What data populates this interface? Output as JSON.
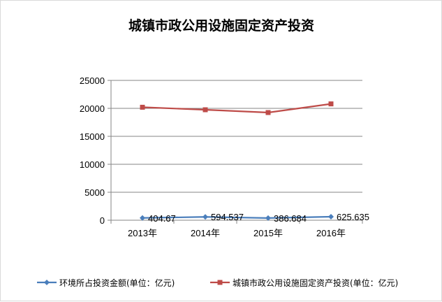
{
  "chart_data": {
    "type": "line",
    "title": "城镇市政公用设施固定资产投资",
    "categories": [
      "2013年",
      "2014年",
      "2015年",
      "2016年"
    ],
    "ylim": [
      0,
      25000
    ],
    "yticks": [
      "0",
      "5000",
      "10000",
      "15000",
      "20000",
      "25000"
    ],
    "grid": true,
    "legend_position": "bottom",
    "series": [
      {
        "name": "环境所占投资金额(单位：亿元)",
        "values": [
          404.67,
          594.537,
          386.684,
          625.635
        ],
        "data_labels": [
          "404.67",
          "594.537",
          "386.684",
          "625.635"
        ],
        "color": "#4a7ebb",
        "marker": "diamond"
      },
      {
        "name": "城镇市政公用设施固定资产投资(单位：亿元)",
        "values": [
          20200,
          19750,
          19250,
          20800
        ],
        "color": "#be4b48",
        "marker": "square"
      }
    ]
  }
}
